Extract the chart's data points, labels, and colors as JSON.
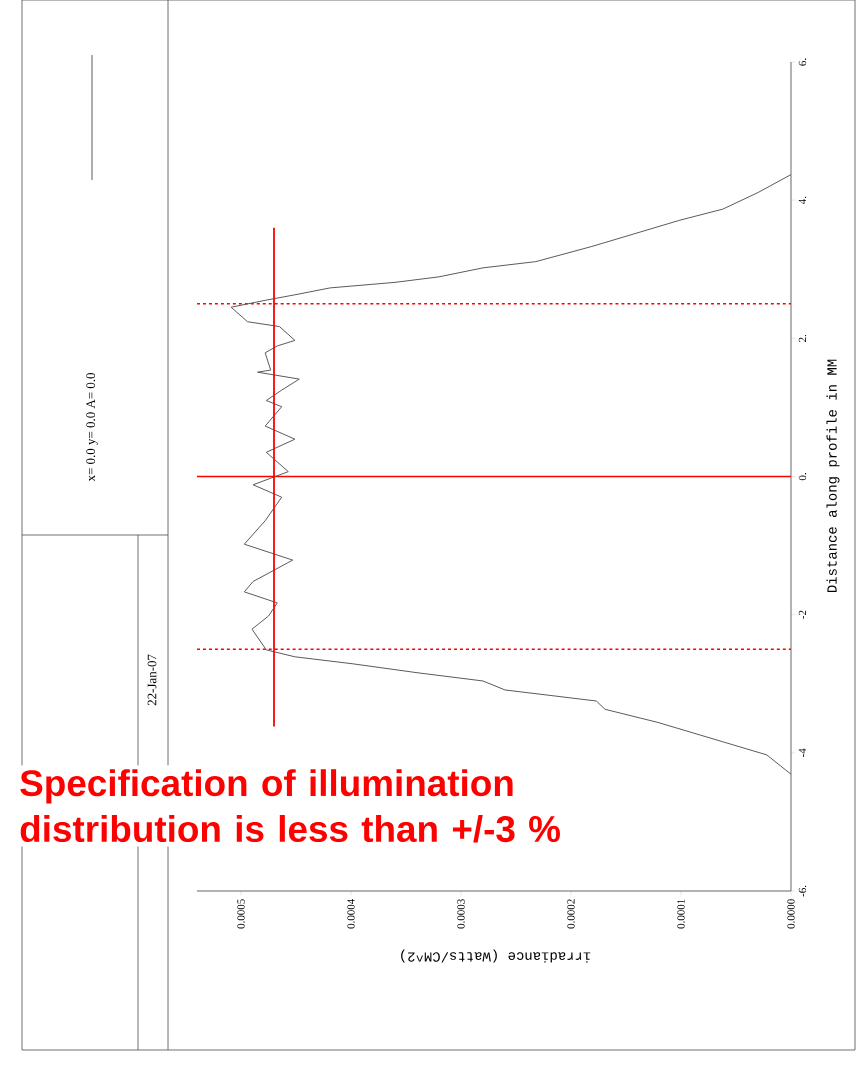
{
  "chart_data": {
    "type": "line",
    "xlabel": "irradiance (Watts/CM^2)",
    "ylabel": "Distance along profile in MM",
    "series": [
      {
        "name": "x= 0.0 y= 0.0 A= 0.0",
        "color": "#5a5a5a",
        "x": [
          0.0,
          2.2e-05,
          6.2e-05,
          0.000121,
          0.000169,
          0.000177,
          0.00026,
          0.00028,
          0.00034,
          0.000399,
          0.000451,
          0.000477,
          0.00049,
          0.000475,
          0.000467,
          0.000497,
          0.000489,
          0.000453,
          0.000497,
          0.000478,
          0.000463,
          0.000489,
          0.000457,
          0.000477,
          0.000451,
          0.000478,
          0.000463,
          0.000477,
          0.000463,
          0.000447,
          0.000485,
          0.000473,
          0.000478,
          0.000467,
          0.000451,
          0.000465,
          0.000494,
          0.000509,
          0.000478,
          0.000451,
          0.000419,
          0.00036,
          0.00032,
          0.00028,
          0.000232,
          0.000181,
          0.000141,
          0.000101,
          6.2e-05,
          3e-05,
          0.0
        ],
        "values": [
          -4.31,
          -4.03,
          -3.84,
          -3.56,
          -3.37,
          -3.25,
          -3.09,
          -2.96,
          -2.84,
          -2.71,
          -2.61,
          -2.51,
          -2.21,
          -2.02,
          -1.83,
          -1.67,
          -1.52,
          -1.21,
          -0.98,
          -0.64,
          -0.3,
          -0.12,
          0.07,
          0.35,
          0.54,
          0.73,
          1.01,
          1.1,
          1.25,
          1.41,
          1.51,
          1.54,
          1.79,
          1.89,
          1.97,
          2.17,
          2.24,
          2.45,
          2.55,
          2.63,
          2.73,
          2.81,
          2.89,
          3.02,
          3.11,
          3.33,
          3.52,
          3.71,
          3.87,
          4.11,
          4.37
        ]
      },
      {
        "type": "line",
        "color": "#ff0000",
        "x": [
          0.00047,
          0.00047
        ],
        "values": [
          -3.62,
          3.6
        ]
      }
    ],
    "xlim": [
      0.00054,
      0
    ],
    "xticks": [
      {
        "value": 0.0005,
        "label": "0.0005"
      },
      {
        "value": 0.0004,
        "label": "0.0004"
      },
      {
        "value": 0.0003,
        "label": "0.0003"
      },
      {
        "value": 0.0002,
        "label": "0.0002"
      },
      {
        "value": 0.0001,
        "label": "0.0001"
      },
      {
        "value": 0,
        "label": "0.0000"
      }
    ],
    "ylim": [
      -6,
      6
    ],
    "yticks": [
      {
        "value": -6,
        "label": "-6."
      },
      {
        "value": -4,
        "label": "-4"
      },
      {
        "value": -2,
        "label": "-2"
      },
      {
        "value": 0,
        "label": "0."
      },
      {
        "value": 2,
        "label": "2."
      },
      {
        "value": 4,
        "label": "4."
      },
      {
        "value": 6,
        "label": "6."
      }
    ],
    "ref_lines": [
      {
        "axis": "y",
        "value": 0,
        "color": "#ff0000",
        "line_style": "solid"
      },
      {
        "axis": "y",
        "value": 2.5,
        "color": "#ff0000",
        "line_style": "dashed"
      },
      {
        "axis": "y",
        "value": -2.5,
        "color": "#ff0000",
        "line_style": "dashed"
      }
    ],
    "legend": "left",
    "annotations": [
      "22-Jan-07",
      "Specification of illumination distribution is less than +/-3 %"
    ]
  }
}
